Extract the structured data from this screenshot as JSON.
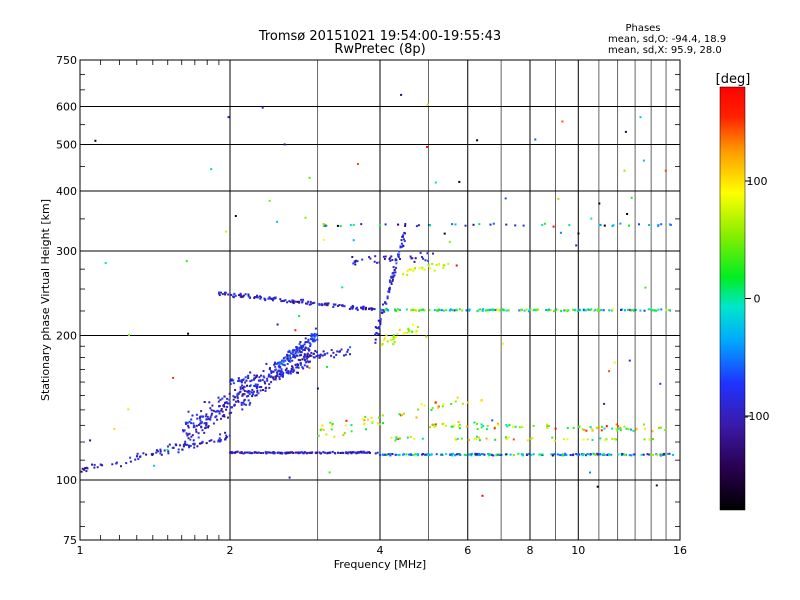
{
  "chart_data": {
    "type": "scatter",
    "title": "Tromsø 20151021 19:54:00-19:55:43",
    "subtitle": "RwPretec (8p)",
    "stats": {
      "header": "Phases",
      "line_o": "mean, sd,O: -94.4, 18.9",
      "line_x": "mean, sd,X:  95.9, 28.0"
    },
    "xlabel": "Frequency [MHz]",
    "ylabel": "Stationary phase Virtual Height [km]",
    "xscale": "log",
    "yscale": "log",
    "xlim": [
      1,
      16
    ],
    "ylim": [
      75,
      750
    ],
    "x_ticks": [
      1,
      2,
      4,
      6,
      8,
      10,
      16
    ],
    "x_tick_labels": [
      "1",
      "2",
      "4",
      "6",
      "8",
      "10",
      "16"
    ],
    "x_minor_ticks": [
      3,
      5,
      7,
      9,
      11,
      12,
      13,
      14,
      15
    ],
    "y_ticks": [
      75,
      100,
      200,
      300,
      400,
      500,
      600,
      750
    ],
    "y_tick_labels": [
      "75",
      "100",
      "200",
      "300",
      "400",
      "500",
      "600",
      "750"
    ],
    "y_minor_ticks": [
      80,
      90,
      110,
      120,
      130,
      140,
      150,
      160,
      170,
      180,
      190,
      225,
      250,
      275,
      350,
      450,
      550,
      650,
      700
    ],
    "grid": true,
    "colorbar": {
      "label": "[deg]",
      "range": [
        -180,
        180
      ],
      "ticks": [
        100,
        0,
        -100
      ],
      "tick_labels": [
        "100",
        "0",
        "-100"
      ]
    },
    "series": [
      {
        "traces": [
          {
            "x0": 1.0,
            "x1": 1.3,
            "h0": 105,
            "h1": 110,
            "phase": -100,
            "n": 22,
            "jitter": 0.02
          },
          {
            "x0": 1.3,
            "x1": 2.0,
            "h0": 112,
            "h1": 123,
            "phase": -95,
            "n": 70,
            "jitter": 0.03
          },
          {
            "x0": 2.0,
            "x1": 4.0,
            "h0": 114,
            "h1": 114,
            "phase": -95,
            "n": 160,
            "jitter": 0.006
          },
          {
            "x0": 4.0,
            "x1": 15.5,
            "h0": 113,
            "h1": 113,
            "phase": -40,
            "n": 210,
            "jitter": 0.006,
            "phase_spread": 140
          },
          {
            "x0": 1.6,
            "x1": 2.9,
            "h0": 125,
            "h1": 185,
            "phase": -95,
            "n": 320,
            "jitter": 0.1
          },
          {
            "x0": 2.0,
            "x1": 2.7,
            "h0": 160,
            "h1": 170,
            "phase": -90,
            "n": 60,
            "jitter": 0.03
          },
          {
            "x0": 2.5,
            "x1": 3.0,
            "h0": 175,
            "h1": 200,
            "phase": -75,
            "n": 90,
            "jitter": 0.05
          },
          {
            "x0": 2.8,
            "x1": 3.5,
            "h0": 180,
            "h1": 186,
            "phase": -95,
            "n": 40,
            "jitter": 0.03
          },
          {
            "x0": 1.9,
            "x1": 4.0,
            "h0": 245,
            "h1": 226,
            "phase": -95,
            "n": 140,
            "jitter": 0.015
          },
          {
            "x0": 4.0,
            "x1": 15.5,
            "h0": 226,
            "h1": 226,
            "phase": 10,
            "n": 170,
            "jitter": 0.008,
            "phase_spread": 140
          },
          {
            "x0": 3.9,
            "x1": 4.5,
            "h0": 195,
            "h1": 330,
            "phase": -90,
            "n": 80,
            "jitter": 0.05
          },
          {
            "x0": 3.5,
            "x1": 5.2,
            "h0": 285,
            "h1": 292,
            "phase": -100,
            "n": 35,
            "jitter": 0.03
          },
          {
            "x0": 4.4,
            "x1": 5.5,
            "h0": 270,
            "h1": 280,
            "phase": 80,
            "n": 25,
            "jitter": 0.03
          },
          {
            "x0": 4.0,
            "x1": 4.8,
            "h0": 190,
            "h1": 210,
            "phase": 70,
            "n": 30,
            "jitter": 0.04
          },
          {
            "x0": 3.0,
            "x1": 15.5,
            "h0": 340,
            "h1": 340,
            "phase": -50,
            "n": 45,
            "jitter": 0.01,
            "phase_spread": 200
          },
          {
            "x0": 5.0,
            "x1": 15.0,
            "h0": 130,
            "h1": 128,
            "phase": 60,
            "n": 80,
            "jitter": 0.025,
            "phase_spread": 140
          },
          {
            "x0": 3.0,
            "x1": 6.5,
            "h0": 125,
            "h1": 150,
            "phase": 80,
            "n": 55,
            "jitter": 0.06,
            "phase_spread": 120
          },
          {
            "x0": 4.0,
            "x1": 15.0,
            "h0": 122,
            "h1": 122,
            "phase": 60,
            "n": 45,
            "jitter": 0.015,
            "phase_spread": 160
          },
          {
            "x0": 1.0,
            "x1": 15.0,
            "h0": 90,
            "h1": 650,
            "phase": 0,
            "n": 80,
            "jitter": 1.0,
            "phase_spread": 360
          }
        ]
      }
    ]
  }
}
